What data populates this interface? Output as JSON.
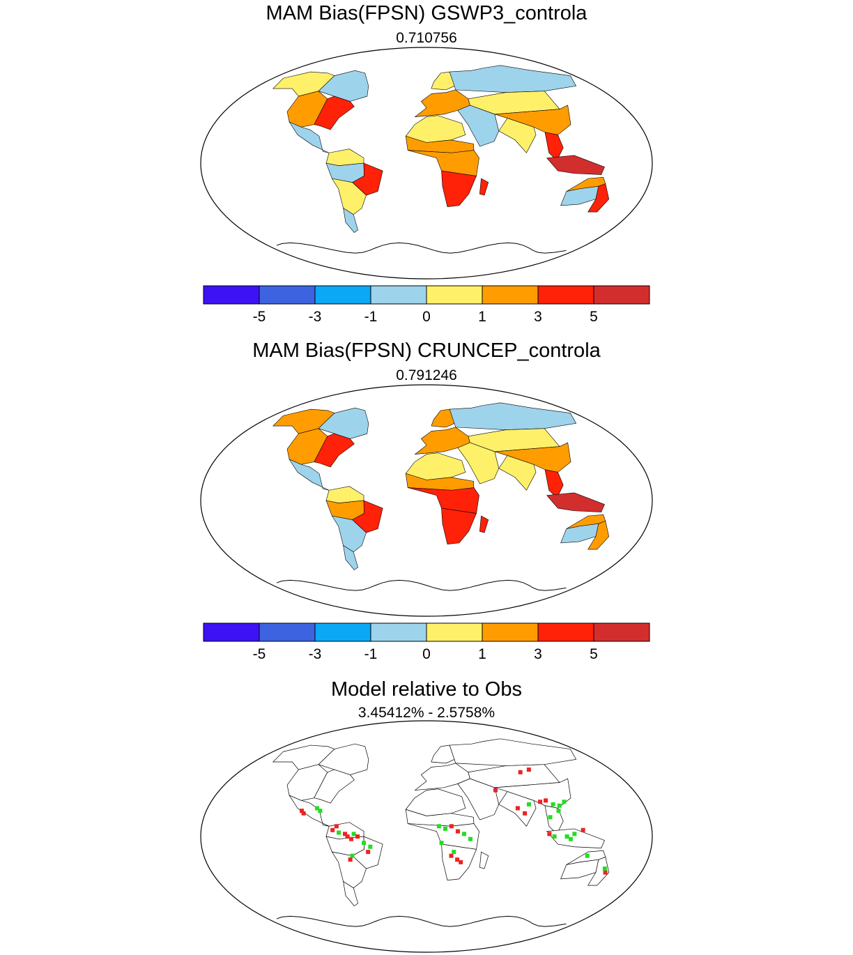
{
  "colors": {
    "ocean": "#ffffff",
    "land_neutral": "#ffffff",
    "coast": "#000000",
    "better": "#22dd22",
    "worse": "#ee2222"
  },
  "colorbar": {
    "colors": [
      "#3d12f5",
      "#3d63e0",
      "#0aa8f5",
      "#9ed3ec",
      "#fff06a",
      "#ff9d00",
      "#ff2208",
      "#d32e2e"
    ],
    "tick_labels": [
      "-5",
      "-3",
      "-1",
      "0",
      "1",
      "3",
      "5"
    ]
  },
  "chart_data": [
    {
      "type": "heatmap",
      "title": "MAM Bias(FPSN) GSWP3_controla",
      "subtitle": "0.710756",
      "levels": [
        -5,
        -3,
        -1,
        0,
        1,
        3,
        5
      ],
      "regions": [
        {
          "region": "Alaska / NW Canada",
          "bias": 0.5
        },
        {
          "region": "Canadian Arctic",
          "bias": -0.5
        },
        {
          "region": "Western USA",
          "bias": 1.5
        },
        {
          "region": "Eastern USA",
          "bias": 3.5
        },
        {
          "region": "Mexico / Central America",
          "bias": -0.5
        },
        {
          "region": "Northern South America",
          "bias": 0.5
        },
        {
          "region": "Amazon",
          "bias": -0.5
        },
        {
          "region": "Eastern Brazil",
          "bias": 3.5
        },
        {
          "region": "Southern South America",
          "bias": 0.5
        },
        {
          "region": "Patagonia",
          "bias": -0.5
        },
        {
          "region": "Europe",
          "bias": 1.5
        },
        {
          "region": "Scandinavia",
          "bias": 0.5
        },
        {
          "region": "Northern Siberia",
          "bias": -0.5
        },
        {
          "region": "Central Asia",
          "bias": 0.5
        },
        {
          "region": "Sahara",
          "bias": 0
        },
        {
          "region": "Sahel",
          "bias": 1.5
        },
        {
          "region": "Central Africa",
          "bias": 1.5
        },
        {
          "region": "Southern Africa",
          "bias": 3.5
        },
        {
          "region": "Madagascar",
          "bias": 3.5
        },
        {
          "region": "Middle East",
          "bias": -0.5
        },
        {
          "region": "India",
          "bias": 0.5
        },
        {
          "region": "East Asia",
          "bias": 1.5
        },
        {
          "region": "Southeast Asia",
          "bias": 3.5
        },
        {
          "region": "Indonesia",
          "bias": 5.5
        },
        {
          "region": "Northern Australia",
          "bias": 1.5
        },
        {
          "region": "Central Australia",
          "bias": -0.5
        },
        {
          "region": "Eastern Australia",
          "bias": 3.5
        }
      ]
    },
    {
      "type": "heatmap",
      "title": "MAM Bias(FPSN) CRUNCEP_controla",
      "subtitle": "0.791246",
      "levels": [
        -5,
        -3,
        -1,
        0,
        1,
        3,
        5
      ],
      "regions": [
        {
          "region": "Alaska / NW Canada",
          "bias": 1.5
        },
        {
          "region": "Canadian Arctic",
          "bias": -0.5
        },
        {
          "region": "Western USA",
          "bias": 1.5
        },
        {
          "region": "Eastern USA",
          "bias": 3.5
        },
        {
          "region": "Mexico / Central America",
          "bias": -0.5
        },
        {
          "region": "Northern South America",
          "bias": 0.5
        },
        {
          "region": "Amazon",
          "bias": 1.5
        },
        {
          "region": "Eastern Brazil",
          "bias": 3.5
        },
        {
          "region": "Southern South America",
          "bias": -0.5
        },
        {
          "region": "Patagonia",
          "bias": -0.5
        },
        {
          "region": "Europe",
          "bias": 1.5
        },
        {
          "region": "Scandinavia",
          "bias": 1.5
        },
        {
          "region": "Northern Siberia",
          "bias": -0.5
        },
        {
          "region": "Central Asia",
          "bias": 0.5
        },
        {
          "region": "Sahara",
          "bias": 0
        },
        {
          "region": "Sahel",
          "bias": 1.5
        },
        {
          "region": "Central Africa",
          "bias": 3.5
        },
        {
          "region": "Southern Africa",
          "bias": 3.5
        },
        {
          "region": "Madagascar",
          "bias": 3.5
        },
        {
          "region": "Middle East",
          "bias": 0.5
        },
        {
          "region": "India",
          "bias": 0.5
        },
        {
          "region": "East Asia",
          "bias": 1.5
        },
        {
          "region": "Southeast Asia",
          "bias": 3.5
        },
        {
          "region": "Indonesia",
          "bias": 5.5
        },
        {
          "region": "Northern Australia",
          "bias": 1.5
        },
        {
          "region": "Central Australia",
          "bias": -0.5
        },
        {
          "region": "Eastern Australia",
          "bias": 1.5
        }
      ]
    },
    {
      "type": "heatmap",
      "title": "Model relative to Obs",
      "subtitle": "3.45412% - 2.5758%",
      "categories": [
        "better",
        "worse"
      ],
      "cells": [
        {
          "lon": -102,
          "lat": 20,
          "cat": "worse"
        },
        {
          "lon": -100,
          "lat": 18,
          "cat": "worse"
        },
        {
          "lon": -90,
          "lat": 22,
          "cat": "better"
        },
        {
          "lon": -87,
          "lat": 20,
          "cat": "better"
        },
        {
          "lon": -75,
          "lat": 5,
          "cat": "worse"
        },
        {
          "lon": -72,
          "lat": 8,
          "cat": "worse"
        },
        {
          "lon": -70,
          "lat": 3,
          "cat": "better"
        },
        {
          "lon": -65,
          "lat": 2,
          "cat": "worse"
        },
        {
          "lon": -63,
          "lat": 0,
          "cat": "worse"
        },
        {
          "lon": -60,
          "lat": -2,
          "cat": "worse"
        },
        {
          "lon": -58,
          "lat": 2,
          "cat": "better"
        },
        {
          "lon": -55,
          "lat": 0,
          "cat": "worse"
        },
        {
          "lon": -50,
          "lat": -5,
          "cat": "better"
        },
        {
          "lon": -45,
          "lat": -8,
          "cat": "better"
        },
        {
          "lon": -47,
          "lat": -12,
          "cat": "worse"
        },
        {
          "lon": -60,
          "lat": -15,
          "cat": "better"
        },
        {
          "lon": -62,
          "lat": -18,
          "cat": "worse"
        },
        {
          "lon": 10,
          "lat": 8,
          "cat": "better"
        },
        {
          "lon": 15,
          "lat": 6,
          "cat": "better"
        },
        {
          "lon": 20,
          "lat": 8,
          "cat": "worse"
        },
        {
          "lon": 25,
          "lat": 4,
          "cat": "worse"
        },
        {
          "lon": 30,
          "lat": 2,
          "cat": "better"
        },
        {
          "lon": 35,
          "lat": -2,
          "cat": "better"
        },
        {
          "lon": 12,
          "lat": -5,
          "cat": "better"
        },
        {
          "lon": 20,
          "lat": -15,
          "cat": "worse"
        },
        {
          "lon": 25,
          "lat": -18,
          "cat": "worse"
        },
        {
          "lon": 28,
          "lat": -20,
          "cat": "worse"
        },
        {
          "lon": 22,
          "lat": -12,
          "cat": "better"
        },
        {
          "lon": 75,
          "lat": 22,
          "cat": "worse"
        },
        {
          "lon": 80,
          "lat": 18,
          "cat": "worse"
        },
        {
          "lon": 85,
          "lat": 25,
          "cat": "better"
        },
        {
          "lon": 95,
          "lat": 27,
          "cat": "worse"
        },
        {
          "lon": 100,
          "lat": 28,
          "cat": "worse"
        },
        {
          "lon": 105,
          "lat": 25,
          "cat": "better"
        },
        {
          "lon": 110,
          "lat": 24,
          "cat": "better"
        },
        {
          "lon": 108,
          "lat": 20,
          "cat": "better"
        },
        {
          "lon": 115,
          "lat": 27,
          "cat": "better"
        },
        {
          "lon": 100,
          "lat": 15,
          "cat": "better"
        },
        {
          "lon": 90,
          "lat": 50,
          "cat": "worse"
        },
        {
          "lon": 100,
          "lat": 52,
          "cat": "worse"
        },
        {
          "lon": 60,
          "lat": 36,
          "cat": "worse"
        },
        {
          "lon": 98,
          "lat": 2,
          "cat": "worse"
        },
        {
          "lon": 102,
          "lat": 0,
          "cat": "better"
        },
        {
          "lon": 112,
          "lat": 0,
          "cat": "better"
        },
        {
          "lon": 115,
          "lat": -2,
          "cat": "better"
        },
        {
          "lon": 118,
          "lat": 2,
          "cat": "better"
        },
        {
          "lon": 125,
          "lat": 5,
          "cat": "worse"
        },
        {
          "lon": 150,
          "lat": -28,
          "cat": "worse"
        },
        {
          "lon": 148,
          "lat": -25,
          "cat": "better"
        },
        {
          "lon": 130,
          "lat": -15,
          "cat": "better"
        }
      ]
    }
  ]
}
